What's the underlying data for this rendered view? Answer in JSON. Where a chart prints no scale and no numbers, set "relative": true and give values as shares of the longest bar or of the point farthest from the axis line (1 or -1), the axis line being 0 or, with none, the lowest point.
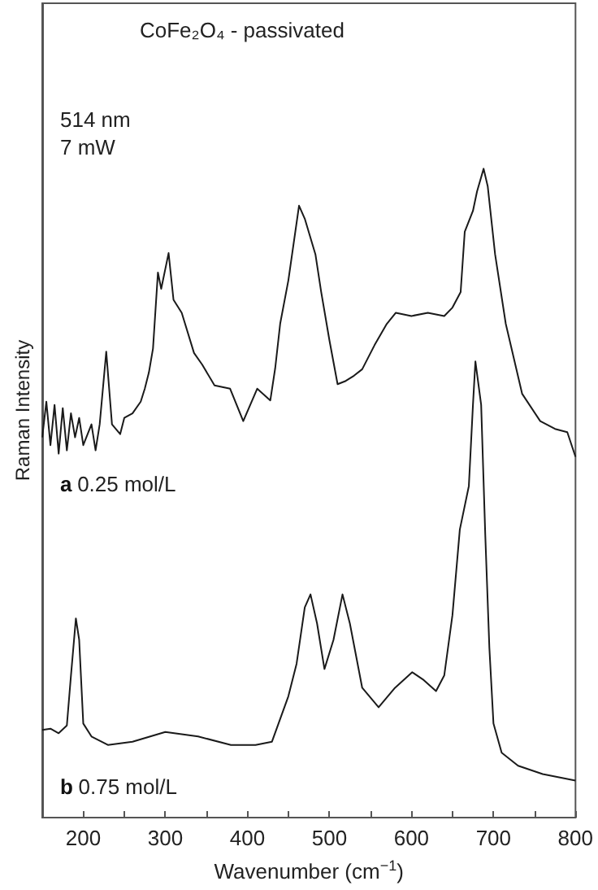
{
  "chart_data": {
    "type": "line",
    "relative": true,
    "title": "CoFe₂O₄ - passivated",
    "annotations": [
      "514 nm",
      "7 mW"
    ],
    "xlabel": "Wavenumber (cm$^{−1}$)",
    "ylabel": "Raman Intensity",
    "xlim": [
      150,
      800
    ],
    "xticks": [
      {
        "value": 150,
        "label": null
      },
      200,
      {
        "value": 250,
        "label": null
      },
      300,
      {
        "value": 350,
        "label": null
      },
      400,
      {
        "value": 450,
        "label": null
      },
      500,
      {
        "value": 550,
        "label": null
      },
      600,
      {
        "value": 650,
        "label": null
      },
      700,
      {
        "value": 750,
        "label": null
      },
      800
    ],
    "grid": false,
    "legend": false,
    "marker": "none",
    "line_style": "solid",
    "series": [
      {
        "name": "a 0.25 mol/L",
        "color": "#1a1a1a",
        "x": [
          150,
          155,
          160,
          165,
          170,
          175,
          180,
          185,
          190,
          195,
          200,
          210,
          215,
          220,
          228,
          235,
          245,
          250,
          260,
          270,
          275,
          280,
          285,
          291,
          295,
          304,
          310,
          320,
          335,
          345,
          360,
          379,
          395,
          412,
          428,
          434,
          440,
          450,
          463,
          470,
          483,
          490,
          500,
          510,
          520,
          530,
          540,
          555,
          570,
          581,
          600,
          620,
          640,
          650,
          660,
          665,
          675,
          680,
          688,
          693,
          702,
          715,
          735,
          757,
          775,
          790,
          800
        ],
        "values": [
          0.586,
          0.641,
          0.574,
          0.636,
          0.561,
          0.631,
          0.566,
          0.623,
          0.586,
          0.616,
          0.574,
          0.606,
          0.566,
          0.606,
          0.718,
          0.606,
          0.591,
          0.616,
          0.623,
          0.641,
          0.661,
          0.686,
          0.723,
          0.84,
          0.815,
          0.87,
          0.798,
          0.778,
          0.716,
          0.698,
          0.666,
          0.661,
          0.611,
          0.661,
          0.643,
          0.693,
          0.761,
          0.828,
          0.943,
          0.923,
          0.868,
          0.81,
          0.736,
          0.668,
          0.673,
          0.681,
          0.691,
          0.728,
          0.761,
          0.778,
          0.773,
          0.778,
          0.773,
          0.786,
          0.81,
          0.903,
          0.935,
          0.965,
          1,
          0.973,
          0.868,
          0.761,
          0.653,
          0.611,
          0.599,
          0.594,
          0.556
        ]
      },
      {
        "name": "b 0.75 mol/L",
        "color": "#1a1a1a",
        "x": [
          150,
          160,
          170,
          180,
          185,
          191,
          195,
          200,
          210,
          230,
          260,
          300,
          340,
          380,
          410,
          430,
          438,
          450,
          460,
          470,
          477,
          485,
          494,
          505,
          516,
          525,
          540,
          560,
          580,
          601,
          615,
          630,
          640,
          650,
          659,
          670,
          675,
          678,
          685,
          690,
          695,
          700,
          710,
          730,
          760,
          800
        ],
        "values": [
          0.135,
          0.137,
          0.13,
          0.142,
          0.219,
          0.307,
          0.274,
          0.145,
          0.125,
          0.112,
          0.117,
          0.132,
          0.125,
          0.112,
          0.112,
          0.117,
          0.145,
          0.187,
          0.237,
          0.324,
          0.344,
          0.299,
          0.229,
          0.274,
          0.344,
          0.299,
          0.2,
          0.17,
          0.2,
          0.224,
          0.212,
          0.195,
          0.219,
          0.312,
          0.444,
          0.511,
          0.636,
          0.703,
          0.636,
          0.436,
          0.262,
          0.145,
          0.1,
          0.08,
          0.067,
          0.057
        ]
      }
    ]
  }
}
